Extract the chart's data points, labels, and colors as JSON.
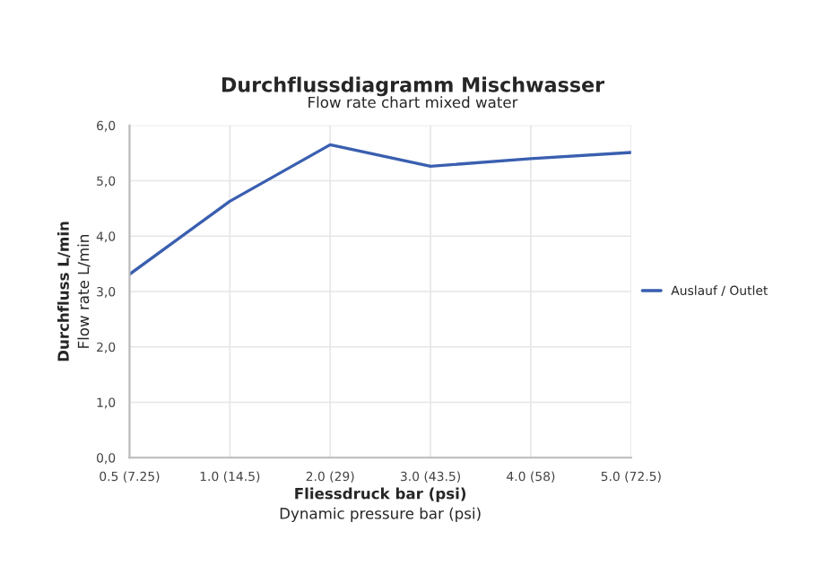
{
  "chart_data": {
    "type": "line",
    "title": "Durchflussdiagramm Mischwasser",
    "subtitle": "Flow rate chart mixed water",
    "xlabel": "Fliessdruck bar (psi)\nDynamic pressure bar (psi)",
    "ylabel": "Durchfluss L/min\nFlow rate L/min",
    "categories": [
      "0.5 (7.25)",
      "1.0 (14.5)",
      "2.0 (29)",
      "3.0 (43.5)",
      "4.0 (58)",
      "5.0 (72.5)"
    ],
    "series": [
      {
        "name": "Auslauf / Outlet",
        "color": "#3a5fb0",
        "values": [
          3.31,
          4.63,
          5.65,
          5.26,
          5.4,
          5.51
        ]
      }
    ],
    "ylim": [
      0,
      6
    ],
    "yticks": [
      {
        "value": 0,
        "label": "0,0"
      },
      {
        "value": 1,
        "label": "1,0"
      },
      {
        "value": 2,
        "label": "2,0"
      },
      {
        "value": 3,
        "label": "3,0"
      },
      {
        "value": 4,
        "label": "4,0"
      },
      {
        "value": 5,
        "label": "5,0"
      },
      {
        "value": 6,
        "label": "6,0"
      }
    ],
    "grid": true,
    "legend": "right",
    "marker": "none",
    "line_style": "solid"
  }
}
